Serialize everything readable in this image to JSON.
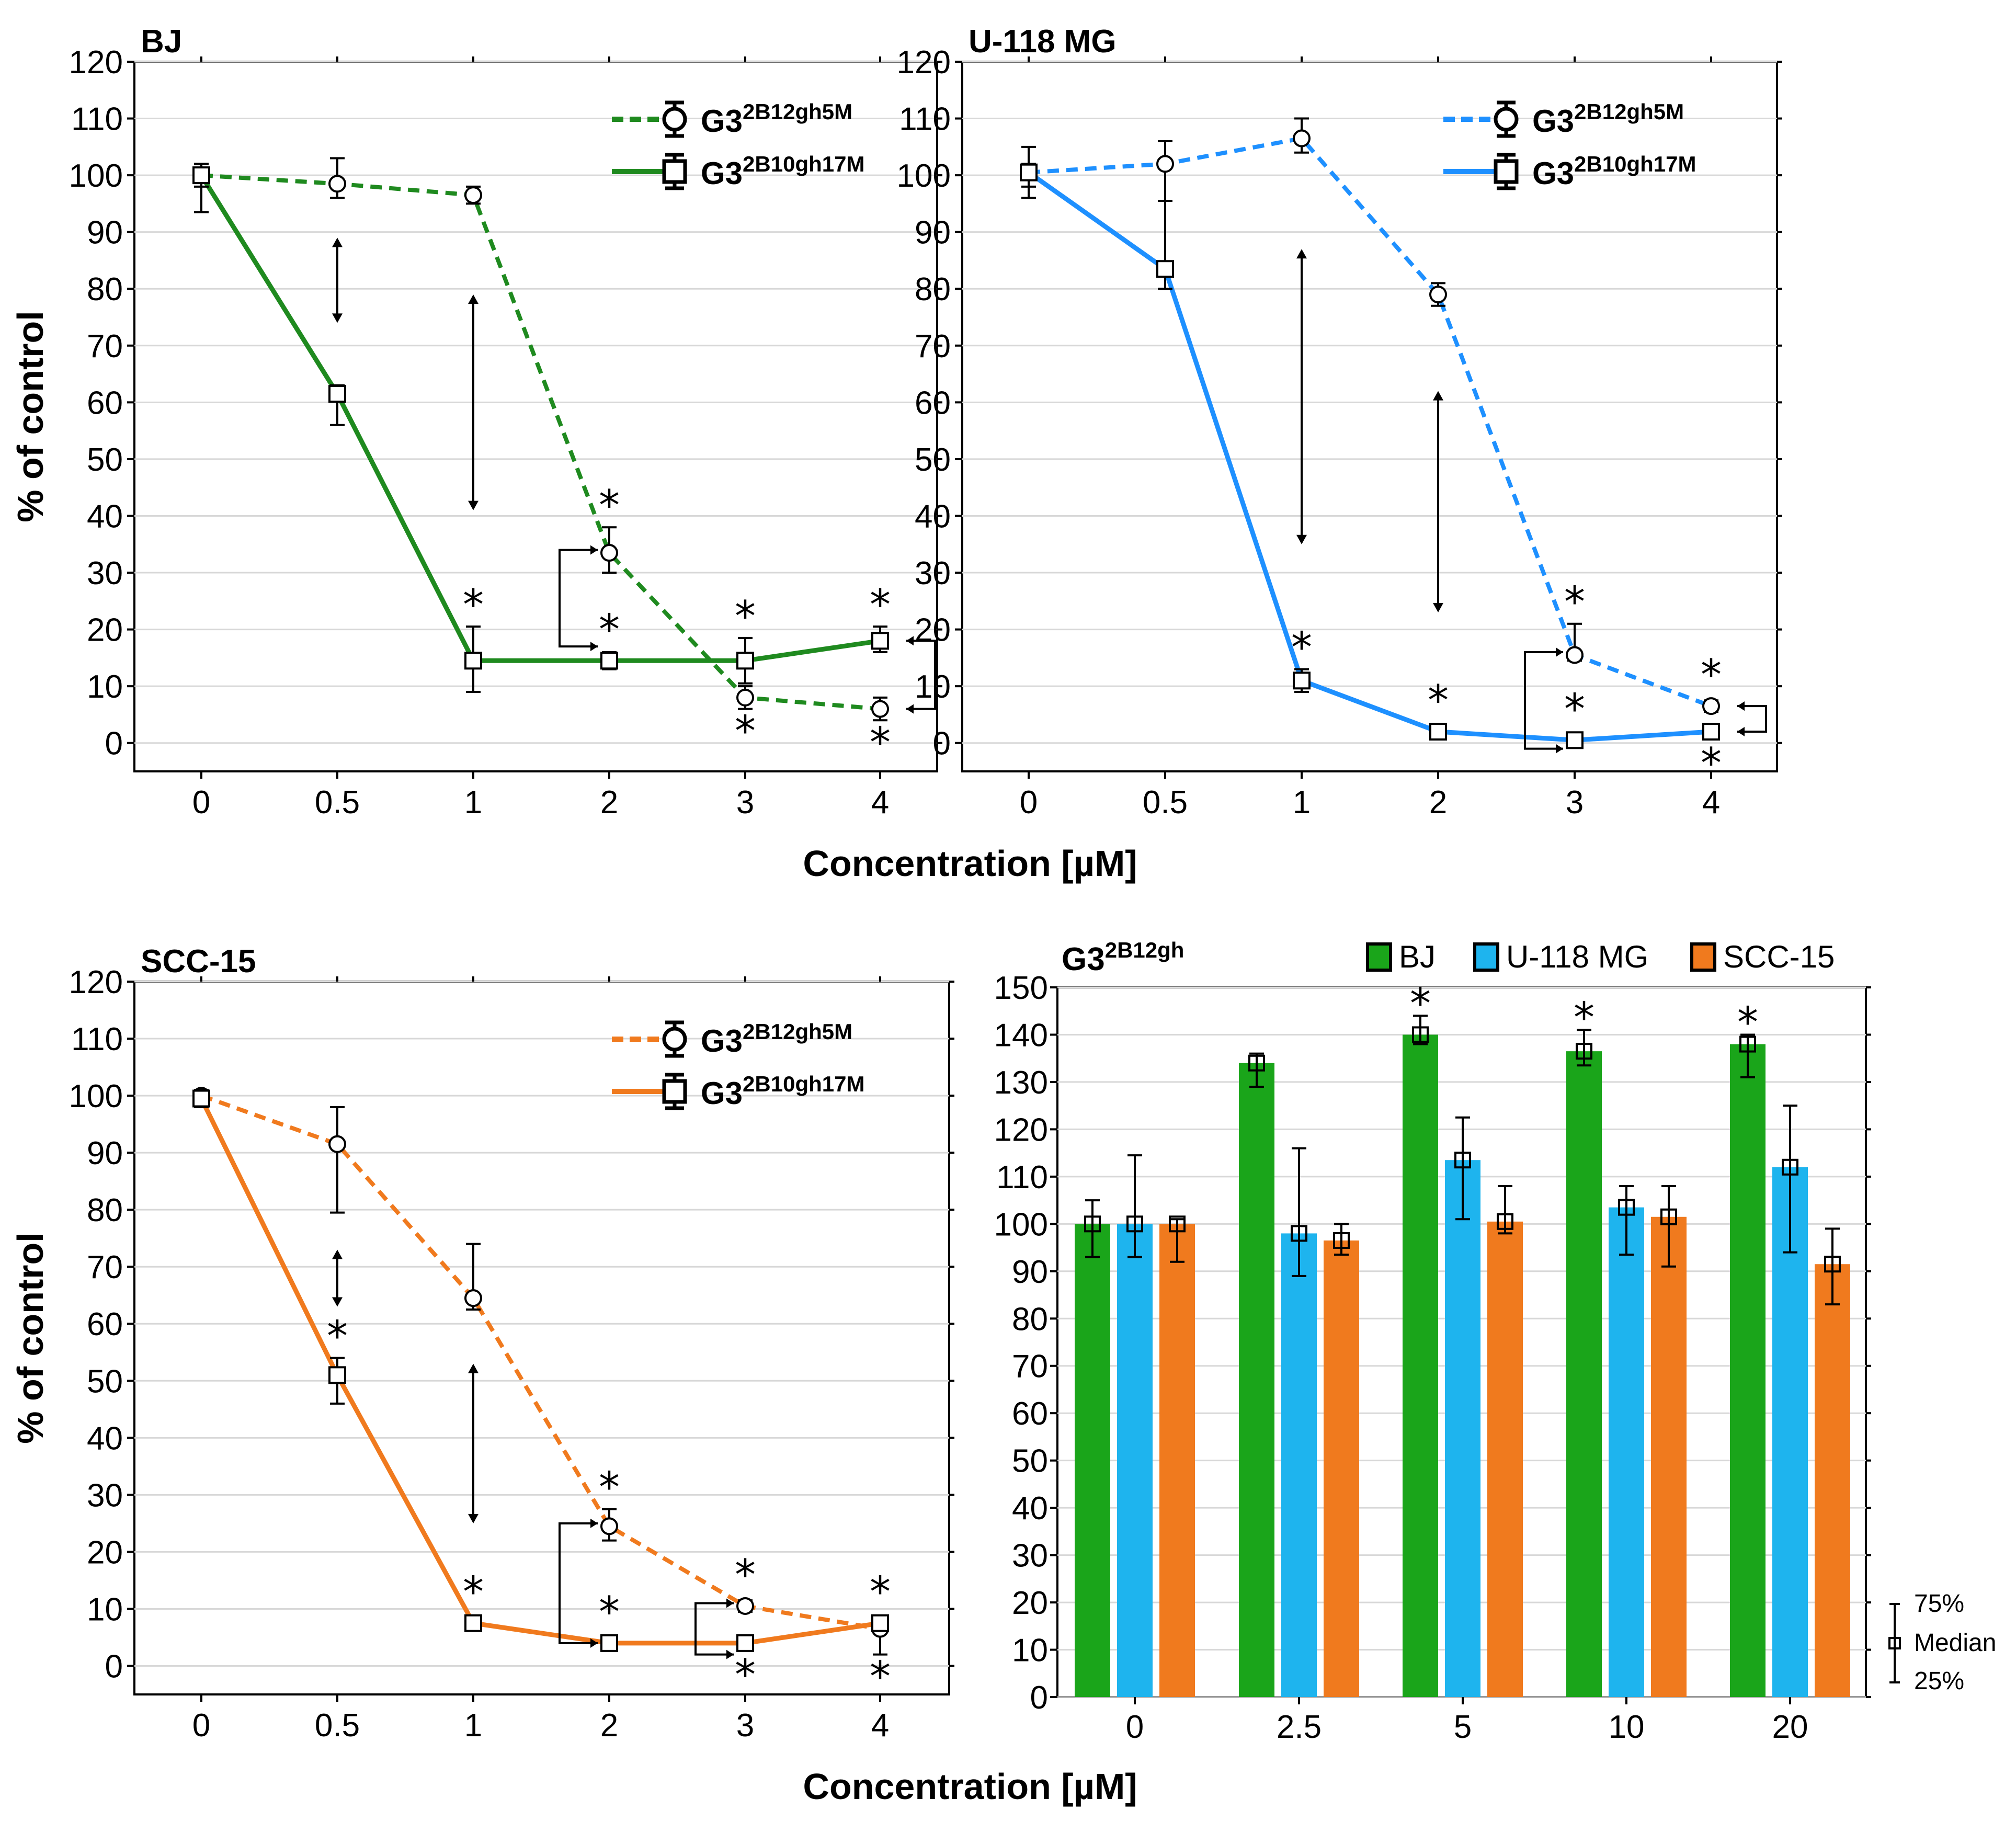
{
  "figure": {
    "x_axis_label": "Concentration [µM]",
    "box_key": {
      "top": "75%",
      "middle": "Median",
      "bottom": "25%"
    }
  },
  "chart_data": [
    {
      "type": "line",
      "title": "BJ",
      "xlabel": "Concentration [µM]",
      "ylabel": "% of control",
      "ylim": [
        -5,
        120
      ],
      "yticks": [
        0,
        10,
        20,
        30,
        40,
        50,
        60,
        70,
        80,
        90,
        100,
        110,
        120
      ],
      "categories": [
        "0",
        "0.5",
        "1",
        "2",
        "3",
        "4"
      ],
      "color": "#1f8a1f",
      "series": [
        {
          "name_base": "G3",
          "name_sup": "2B12gh5M",
          "marker": "circle",
          "dash": true,
          "values": [
            100,
            98.5,
            96.5,
            33.5,
            8,
            6
          ],
          "err_hi": [
            102,
            103,
            98,
            38,
            10,
            8
          ],
          "err_lo": [
            98,
            96,
            95,
            30,
            6,
            4
          ],
          "stars": [
            "",
            "",
            "",
            "above",
            "below",
            "below"
          ]
        },
        {
          "name_base": "G3",
          "name_sup": "2B10gh17M",
          "marker": "square",
          "dash": false,
          "values": [
            100,
            61.5,
            14.5,
            14.5,
            14.5,
            18
          ],
          "err_hi": [
            102,
            63,
            20.5,
            16,
            18.5,
            20.5
          ],
          "err_lo": [
            93.5,
            56,
            9,
            13,
            10.5,
            16
          ],
          "stars": [
            "",
            "",
            "above",
            "above",
            "above",
            "above"
          ]
        }
      ],
      "arrows": [
        {
          "type": "double",
          "cat": 1,
          "from": 89,
          "to": 74
        },
        {
          "type": "double",
          "cat": 2,
          "from": 79,
          "to": 41
        },
        {
          "type": "bracket-left",
          "cat": 3,
          "from": 34,
          "to": 17
        },
        {
          "type": "bracket-right",
          "cat": 5,
          "from": 18,
          "to": 6
        }
      ]
    },
    {
      "type": "line",
      "title": "U-118 MG",
      "xlabel": "Concentration [µM]",
      "ylabel": "",
      "ylim": [
        -5,
        120
      ],
      "yticks": [
        0,
        10,
        20,
        30,
        40,
        50,
        60,
        70,
        80,
        90,
        100,
        110,
        120
      ],
      "categories": [
        "0",
        "0.5",
        "1",
        "2",
        "3",
        "4"
      ],
      "color": "#1e90ff",
      "series": [
        {
          "name_base": "G3",
          "name_sup": "2B12gh5M",
          "marker": "circle",
          "dash": true,
          "values": [
            100.5,
            102,
            106.5,
            79,
            15.5,
            6.5
          ],
          "err_hi": [
            102,
            106,
            110,
            81,
            21,
            7.5
          ],
          "err_lo": [
            98,
            95.5,
            104,
            77,
            14.5,
            5.5
          ],
          "stars": [
            "",
            "",
            "",
            "",
            "above",
            "above"
          ]
        },
        {
          "name_base": "G3",
          "name_sup": "2B10gh17M",
          "marker": "square",
          "dash": false,
          "values": [
            100.5,
            83.5,
            11,
            2,
            0.5,
            2
          ],
          "err_hi": [
            105,
            95.5,
            13,
            3,
            1.5,
            3
          ],
          "err_lo": [
            96,
            80,
            9,
            1,
            -0.5,
            1
          ],
          "stars": [
            "",
            "",
            "above",
            "above",
            "above",
            "below"
          ]
        }
      ],
      "arrows": [
        {
          "type": "double",
          "cat": 2,
          "from": 87,
          "to": 35
        },
        {
          "type": "double",
          "cat": 3,
          "from": 62,
          "to": 23
        },
        {
          "type": "bracket-left",
          "cat": 4,
          "from": 16,
          "to": -1
        },
        {
          "type": "bracket-right",
          "cat": 5,
          "from": 6.5,
          "to": 2
        }
      ]
    },
    {
      "type": "line",
      "title": "SCC-15",
      "xlabel": "Concentration [µM]",
      "ylabel": "% of control",
      "ylim": [
        -5,
        120
      ],
      "yticks": [
        0,
        10,
        20,
        30,
        40,
        50,
        60,
        70,
        80,
        90,
        100,
        110,
        120
      ],
      "categories": [
        "0",
        "0.5",
        "1",
        "2",
        "3",
        "4"
      ],
      "color": "#f07a1e",
      "series": [
        {
          "name_base": "G3",
          "name_sup": "2B12gh5M",
          "marker": "circle",
          "dash": true,
          "values": [
            100,
            91.5,
            64.5,
            24.5,
            10.5,
            6.5
          ],
          "err_hi": [
            101,
            98,
            74,
            27.5,
            11.5,
            8
          ],
          "err_lo": [
            98.5,
            79.5,
            62.5,
            22,
            9.5,
            2
          ],
          "stars": [
            "",
            "",
            "",
            "above",
            "above",
            "below"
          ]
        },
        {
          "name_base": "G3",
          "name_sup": "2B10gh17M",
          "marker": "square",
          "dash": false,
          "values": [
            99.5,
            51,
            7.5,
            4,
            4,
            7.5
          ],
          "err_hi": [
            101,
            54,
            8.5,
            5,
            5,
            8.5
          ],
          "err_lo": [
            98,
            46,
            6.5,
            3,
            3,
            6.5
          ],
          "stars": [
            "",
            "above",
            "above",
            "above",
            "below",
            "above"
          ]
        }
      ],
      "arrows": [
        {
          "type": "double",
          "cat": 1,
          "from": 73,
          "to": 63
        },
        {
          "type": "double",
          "cat": 2,
          "from": 53,
          "to": 25
        },
        {
          "type": "bracket-left",
          "cat": 3,
          "from": 25,
          "to": 4
        },
        {
          "type": "bracket-left",
          "cat": 4,
          "from": 11,
          "to": 2
        }
      ]
    },
    {
      "type": "bar",
      "title_base": "G3",
      "title_sup": "2B12gh",
      "xlabel": "",
      "ylabel": "",
      "ylim": [
        0,
        150
      ],
      "yticks": [
        0,
        10,
        20,
        30,
        40,
        50,
        60,
        70,
        80,
        90,
        100,
        110,
        120,
        130,
        140,
        150
      ],
      "categories": [
        "0",
        "2.5",
        "5",
        "10",
        "20"
      ],
      "series": [
        {
          "name": "BJ",
          "color": "#1aa51a",
          "values": [
            100,
            134,
            140,
            136.5,
            138
          ],
          "err_hi": [
            105,
            136,
            144,
            141,
            140
          ],
          "err_lo": [
            93,
            129,
            138,
            133.5,
            131
          ],
          "stars": [
            false,
            false,
            true,
            true,
            true
          ]
        },
        {
          "name": "U-118 MG",
          "color": "#1eb4ee",
          "values": [
            100,
            98,
            113.5,
            103.5,
            112
          ],
          "err_hi": [
            114.5,
            116,
            122.5,
            108,
            125
          ],
          "err_lo": [
            93,
            89,
            101,
            93.5,
            94
          ],
          "stars": [
            false,
            false,
            false,
            false,
            false
          ]
        },
        {
          "name": "SCC-15",
          "color": "#f07a1e",
          "values": [
            100,
            96.5,
            100.5,
            101.5,
            91.5
          ],
          "err_hi": [
            101,
            100,
            108,
            108,
            99
          ],
          "err_lo": [
            92,
            93.5,
            98,
            91,
            83
          ],
          "stars": [
            false,
            false,
            false,
            false,
            false
          ]
        }
      ]
    }
  ]
}
